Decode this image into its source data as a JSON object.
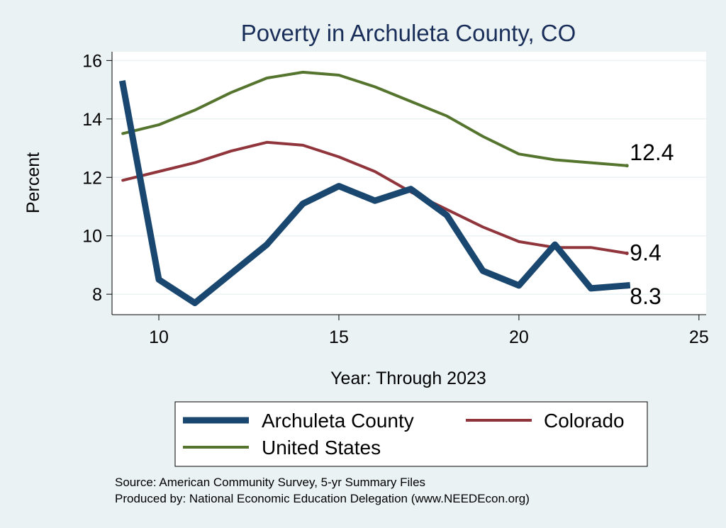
{
  "chart_data": {
    "type": "line",
    "title": "Poverty in Archuleta County, CO",
    "xlabel": "Year: Through 2023",
    "ylabel": "Percent",
    "xlim": [
      8.7,
      25.2
    ],
    "ylim": [
      7.3,
      16.3
    ],
    "xticks": [
      10,
      15,
      20,
      25
    ],
    "yticks": [
      8,
      10,
      12,
      14,
      16
    ],
    "grid": true,
    "legend_position": "bottom",
    "x": [
      9,
      10,
      11,
      12,
      13,
      14,
      15,
      16,
      17,
      18,
      19,
      20,
      21,
      22,
      23
    ],
    "series": [
      {
        "name": "Archuleta County",
        "color": "#1a476f",
        "values": [
          15.2,
          8.5,
          7.7,
          8.7,
          9.7,
          11.1,
          11.7,
          11.2,
          11.6,
          10.7,
          8.8,
          8.3,
          9.7,
          8.2,
          8.3
        ],
        "end_label": "8.3"
      },
      {
        "name": "Colorado",
        "color": "#90353b",
        "values": [
          11.9,
          12.2,
          12.5,
          12.9,
          13.2,
          13.1,
          12.7,
          12.2,
          11.5,
          10.9,
          10.3,
          9.8,
          9.6,
          9.6,
          9.4
        ],
        "end_label": "9.4"
      },
      {
        "name": "United States",
        "color": "#55752f",
        "values": [
          13.5,
          13.8,
          14.3,
          14.9,
          15.4,
          15.6,
          15.5,
          15.1,
          14.6,
          14.1,
          13.4,
          12.8,
          12.6,
          12.5,
          12.4
        ],
        "end_label": "12.4"
      }
    ],
    "notes": [
      "Source: American Community Survey, 5-yr Summary Files",
      "Produced by: National Economic Education Delegation (www.NEEDEcon.org)"
    ]
  }
}
